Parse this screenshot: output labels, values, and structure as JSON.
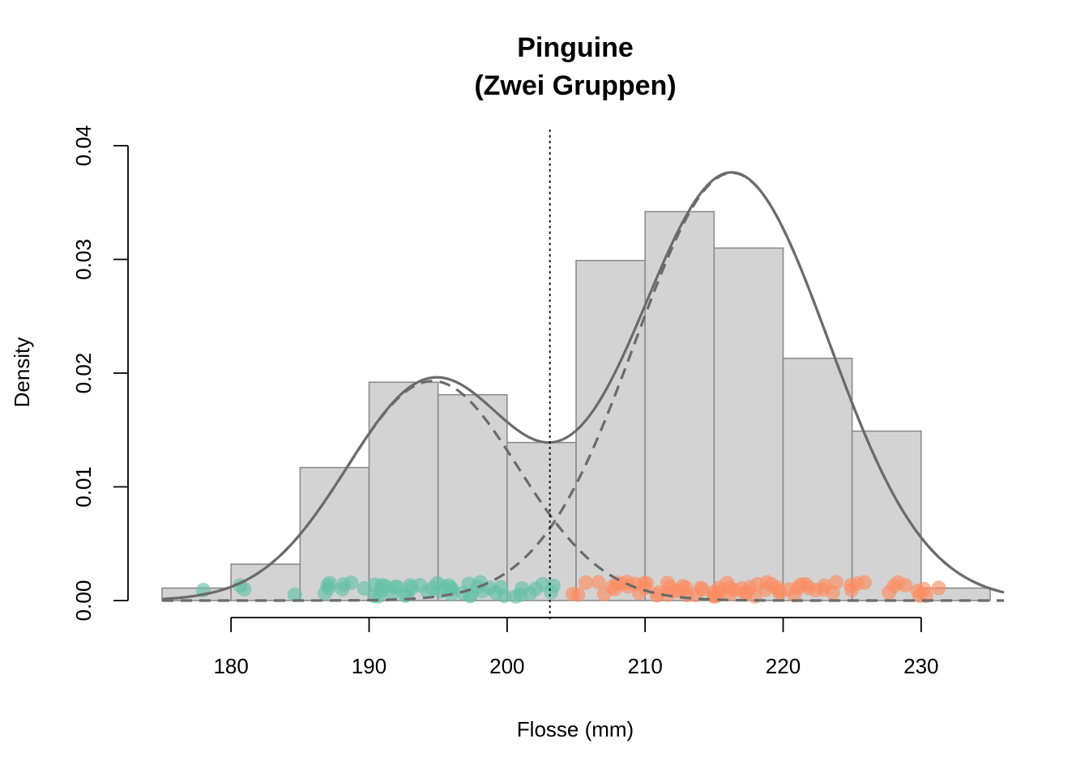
{
  "chart_data": {
    "type": "histogram",
    "title": [
      "Pinguine",
      "(Zwei Gruppen)"
    ],
    "xlabel": "Flosse (mm)",
    "ylabel": "Density",
    "xlim": [
      175,
      236
    ],
    "ylim": [
      0,
      0.04
    ],
    "x_ticks": [
      "180",
      "190",
      "200",
      "210",
      "220",
      "230"
    ],
    "x_tick_values": [
      180,
      190,
      200,
      210,
      220,
      230
    ],
    "y_ticks": [
      "0.00",
      "0.01",
      "0.02",
      "0.03",
      "0.04"
    ],
    "y_tick_values": [
      0,
      0.01,
      0.02,
      0.03,
      0.04
    ],
    "bins": [
      {
        "x0": 170,
        "x1": 180,
        "density": 0.0011
      },
      {
        "x0": 180,
        "x1": 185,
        "density": 0.0032
      },
      {
        "x0": 185,
        "x1": 190,
        "density": 0.0117
      },
      {
        "x0": 190,
        "x1": 195,
        "density": 0.0192
      },
      {
        "x0": 195,
        "x1": 200,
        "density": 0.0181
      },
      {
        "x0": 200,
        "x1": 205,
        "density": 0.0139
      },
      {
        "x0": 205,
        "x1": 210,
        "density": 0.0299
      },
      {
        "x0": 210,
        "x1": 215,
        "density": 0.0342
      },
      {
        "x0": 215,
        "x1": 220,
        "density": 0.031
      },
      {
        "x0": 220,
        "x1": 225,
        "density": 0.0213
      },
      {
        "x0": 225,
        "x1": 230,
        "density": 0.0149
      },
      {
        "x0": 230,
        "x1": 235,
        "density": 0.0011
      }
    ],
    "mixture_components": [
      {
        "group": "green",
        "mean": 194.6,
        "sd": 6.2,
        "weight": 0.3
      },
      {
        "group": "orange",
        "mean": 216.3,
        "sd": 7.0,
        "weight": 0.66
      }
    ],
    "threshold_x": 203.1,
    "points_green": [
      178,
      181,
      181,
      185,
      187,
      187,
      187,
      187,
      188,
      188,
      189,
      190,
      190,
      190,
      191,
      191,
      191,
      191,
      192,
      192,
      192,
      193,
      193,
      193,
      193,
      194,
      194,
      195,
      195,
      195,
      195,
      196,
      196,
      196,
      196,
      197,
      197,
      197,
      197,
      198,
      198,
      198,
      199,
      199,
      200,
      200,
      201,
      201,
      201,
      202,
      202,
      203,
      203,
      203
    ],
    "points_orange": [
      205,
      205,
      206,
      207,
      207,
      208,
      208,
      208,
      208,
      209,
      209,
      209,
      210,
      210,
      210,
      210,
      211,
      211,
      212,
      212,
      212,
      212,
      213,
      213,
      213,
      213,
      214,
      214,
      214,
      215,
      215,
      215,
      215,
      215,
      215,
      216,
      216,
      216,
      216,
      217,
      217,
      217,
      218,
      218,
      218,
      219,
      219,
      219,
      220,
      220,
      220,
      220,
      221,
      221,
      221,
      222,
      222,
      222,
      223,
      223,
      224,
      224,
      225,
      225,
      225,
      226,
      228,
      228,
      228,
      229,
      230,
      230,
      230,
      230,
      231
    ],
    "colors": {
      "bar_fill": "#d3d3d3",
      "bar_stroke": "#8c8c8c",
      "curve": "#6b6b6b",
      "green_points": "#66c2a5",
      "orange_points": "#fc8d62"
    }
  }
}
